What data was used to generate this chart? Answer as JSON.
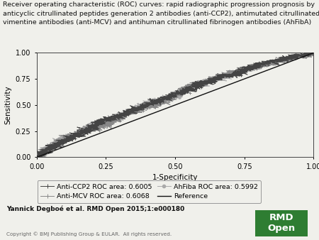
{
  "title_line1": "Receiver operating characteristic (ROC) curves: rapid radiographic progression prognosis by",
  "title_line2": "anticyclic citrullinated peptides generation 2 antibodies (anti-CCP2), antimutated citrullinated",
  "title_line3": "vimentine antibodies (anti-MCV) and antihuman citrullinated fibrinogen antibodies (AhFibA)",
  "xlabel": "1-Specificity",
  "ylabel": "Sensitivity",
  "xlim": [
    0.0,
    1.0
  ],
  "ylim": [
    0.0,
    1.0
  ],
  "xticks": [
    0.0,
    0.25,
    0.5,
    0.75,
    1.0
  ],
  "yticks": [
    0.0,
    0.25,
    0.5,
    0.75,
    1.0
  ],
  "xtick_labels": [
    "0.00",
    "0.25",
    "0.50",
    "0.75",
    "1.00"
  ],
  "ytick_labels": [
    "0.00",
    "0.25",
    "0.50",
    "0.75",
    "1.00"
  ],
  "anti_ccp2_auc": 0.6005,
  "anti_mcv_auc": 0.6068,
  "ahfiba_auc": 0.5992,
  "curve_color_dark": "#444444",
  "curve_color_mid": "#888888",
  "curve_color_light": "#aaaaaa",
  "reference_color": "#111111",
  "legend_labels": [
    "Anti-CCP2 ROC area: 0.6005",
    "Anti-MCV ROC area: 0.6068",
    "AhFiba ROC area: 0.5992",
    "Reference"
  ],
  "citation": "Yannick Degboé et al. RMD Open 2015;1:e000180",
  "copyright": "Copyright © BMJ Publishing Group & EULAR.  All rights reserved.",
  "rmd_open_bg": "#2e7d32",
  "rmd_open_text": "RMD\nOpen",
  "background_color": "#f0f0eb",
  "title_fontsize": 6.8,
  "axis_fontsize": 7.5,
  "tick_fontsize": 7,
  "legend_fontsize": 6.8,
  "noise_scale": 0.012
}
